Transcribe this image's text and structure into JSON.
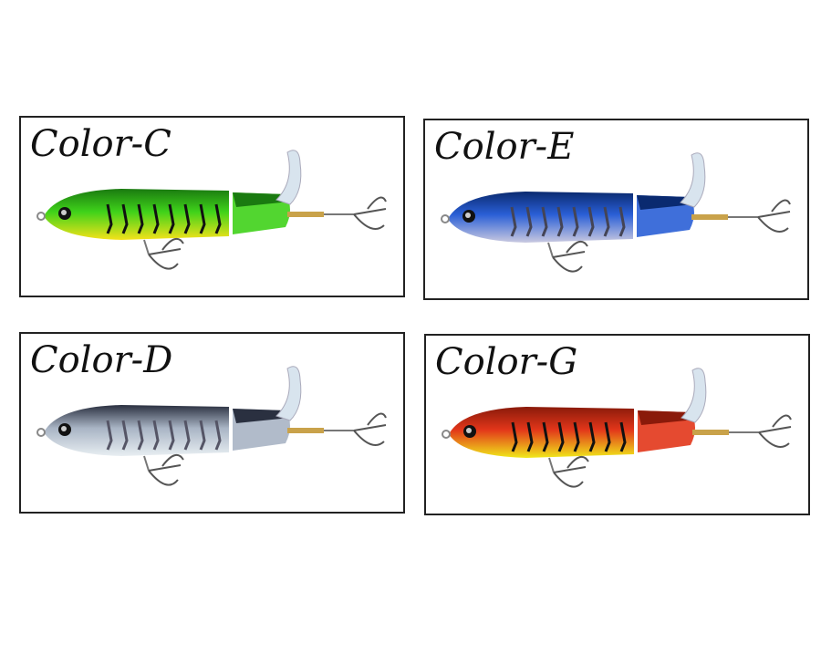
{
  "panels": [
    {
      "label": "Color-C",
      "body": "#3fd21a",
      "belly": "#f4e21a",
      "head": "#1a7a10",
      "stripe": "#111"
    },
    {
      "label": "Color-E",
      "body": "#2a5fd6",
      "belly": "#c9c9e0",
      "head": "#0a2a70",
      "stripe": "#445"
    },
    {
      "label": "Color-D",
      "body": "#a8b4c4",
      "belly": "#e8eef2",
      "head": "#2a3040",
      "stripe": "#556"
    },
    {
      "label": "Color-G",
      "body": "#e2361a",
      "belly": "#f0e81a",
      "head": "#8a1a0a",
      "stripe": "#111"
    }
  ]
}
